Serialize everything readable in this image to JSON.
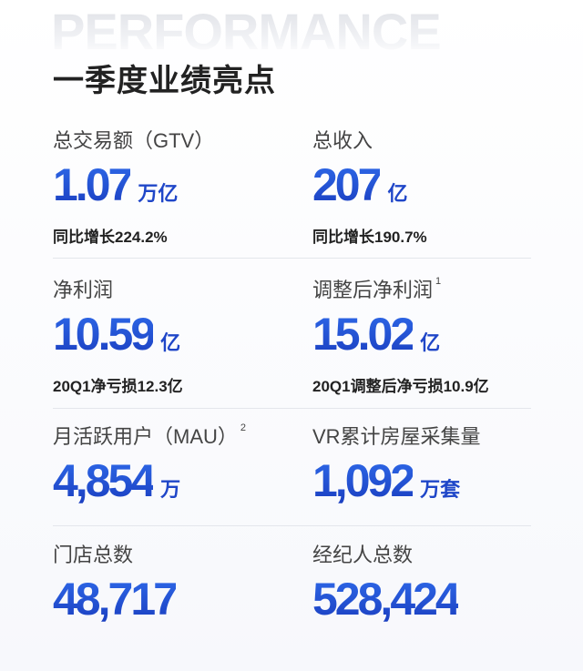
{
  "background_word": "PERFORMANCE",
  "title": "一季度业绩亮点",
  "colors": {
    "accent": "#1f46c8",
    "text": "#222222",
    "label": "#444444"
  },
  "metrics": [
    {
      "label": "总交易额（GTV）",
      "sup": "",
      "value": "1.07",
      "unit": "万亿",
      "sub": "同比增长224.2%"
    },
    {
      "label": "总收入",
      "sup": "",
      "value": "207",
      "unit": "亿",
      "sub": "同比增长190.7%"
    },
    {
      "label": "净利润",
      "sup": "",
      "value": "10.59",
      "unit": "亿",
      "sub": "20Q1净亏损12.3亿"
    },
    {
      "label": "调整后净利润",
      "sup": "1",
      "value": "15.02",
      "unit": "亿",
      "sub": "20Q1调整后净亏损10.9亿"
    },
    {
      "label": "月活跃用户（MAU）",
      "sup": "2",
      "value": "4,854",
      "unit": "万",
      "sub": ""
    },
    {
      "label": "VR累计房屋采集量",
      "sup": "",
      "value": "1,092",
      "unit": "万套",
      "sub": ""
    },
    {
      "label": "门店总数",
      "sup": "",
      "value": "48,717",
      "unit": "",
      "sub": ""
    },
    {
      "label": "经纪人总数",
      "sup": "",
      "value": "528,424",
      "unit": "",
      "sub": ""
    }
  ]
}
